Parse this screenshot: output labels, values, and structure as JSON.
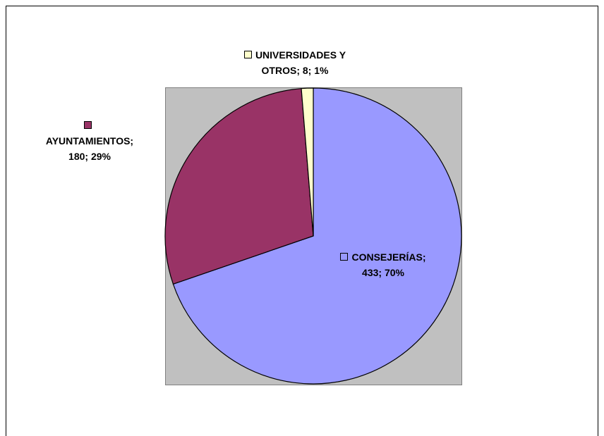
{
  "chart_data": {
    "type": "pie",
    "values": [
      433,
      180,
      8
    ],
    "value_labels": [
      "CONSEJERÍAS; 433; 70%",
      "AYUNTAMIENTOS; 180; 29%",
      "UNIVERSIDADES Y OTROS; 8; 1%"
    ],
    "colors": [
      "#9999ff",
      "#993366",
      "#ffffcc"
    ],
    "start_angle": 0,
    "direction": "clockwise"
  }
}
